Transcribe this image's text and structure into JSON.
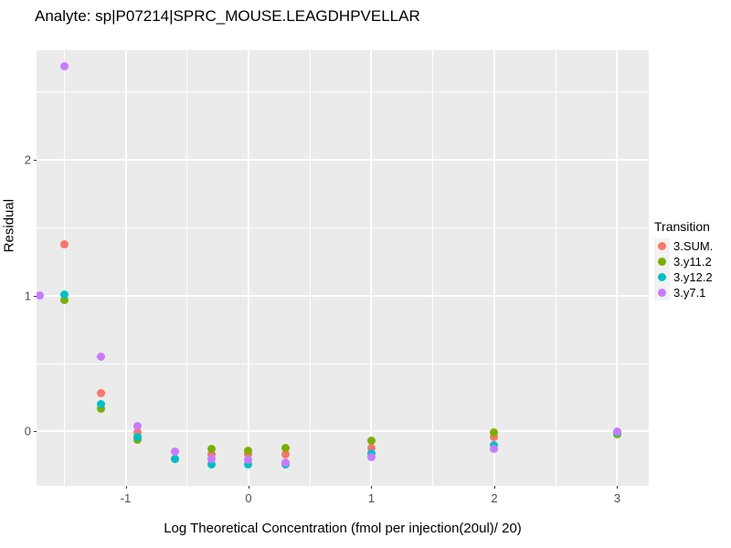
{
  "chart_data": {
    "type": "scatter",
    "title": "Analyte: sp|P07214|SPRC_MOUSE.LEAGDHPVELLAR",
    "xlabel": "Log Theoretical Concentration (fmol per injection(20ul)/ 20)",
    "ylabel": "Residual",
    "legend_title": "Transition",
    "legend_position": "right",
    "grid": true,
    "panel_bg": "#EBEBEB",
    "gridline_color": "#FFFFFF",
    "xlim": [
      -1.725,
      3.257
    ],
    "ylim": [
      -0.4,
      2.805
    ],
    "x_major_ticks": [
      -1,
      0,
      1,
      2,
      3
    ],
    "x_minor_ticks": [
      -1.5,
      -0.5,
      0.5,
      1.5,
      2.5
    ],
    "y_major_ticks": [
      0,
      1,
      2
    ],
    "y_minor_ticks": [
      0.5,
      1.5,
      2.5
    ],
    "series": [
      {
        "name": "3.SUM.",
        "color": "#F8766D",
        "points": [
          [
            -1.5,
            1.38
          ],
          [
            -1.2,
            0.28
          ],
          [
            -0.9,
            -0.01
          ],
          [
            -0.6,
            -0.15
          ],
          [
            -0.3,
            -0.17
          ],
          [
            0,
            -0.17
          ],
          [
            0.3,
            -0.17
          ],
          [
            1,
            -0.12
          ],
          [
            2,
            -0.04
          ],
          [
            3,
            -0.01
          ]
        ]
      },
      {
        "name": "3.y11.2",
        "color": "#7CAE00",
        "points": [
          [
            -1.5,
            0.97
          ],
          [
            -1.2,
            0.17
          ],
          [
            -0.9,
            -0.06
          ],
          [
            -0.6,
            -0.2
          ],
          [
            -0.3,
            -0.13
          ],
          [
            0,
            -0.14
          ],
          [
            0.3,
            -0.12
          ],
          [
            1,
            -0.07
          ],
          [
            2,
            -0.01
          ],
          [
            3,
            -0.02
          ]
        ]
      },
      {
        "name": "3.y12.2",
        "color": "#00BFC4",
        "points": [
          [
            -1.5,
            1.01
          ],
          [
            -1.2,
            0.2
          ],
          [
            -0.9,
            -0.04
          ],
          [
            -0.6,
            -0.2
          ],
          [
            -0.3,
            -0.24
          ],
          [
            0,
            -0.24
          ],
          [
            0.3,
            -0.24
          ],
          [
            1,
            -0.16
          ],
          [
            2,
            -0.1
          ],
          [
            3,
            -0.01
          ]
        ]
      },
      {
        "name": "3.y7.1",
        "color": "#C77CFF",
        "points": [
          [
            -1.7,
            1.0
          ],
          [
            -1.5,
            2.69
          ],
          [
            -1.2,
            0.55
          ],
          [
            -0.9,
            0.04
          ],
          [
            -0.6,
            -0.15
          ],
          [
            -0.3,
            -0.2
          ],
          [
            0,
            -0.21
          ],
          [
            0.3,
            -0.23
          ],
          [
            1,
            -0.19
          ],
          [
            2,
            -0.13
          ],
          [
            3,
            0.0
          ]
        ]
      }
    ]
  }
}
